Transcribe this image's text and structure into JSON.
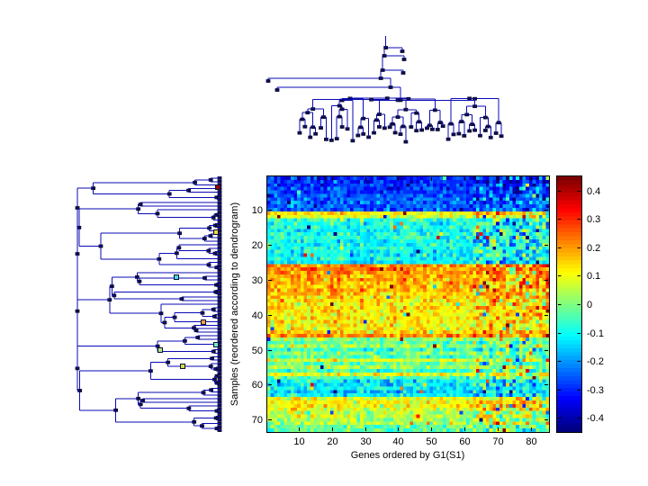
{
  "figure": {
    "background": "#ffffff"
  },
  "heatmap": {
    "x_label": "Genes ordered by G1(S1)",
    "y_label": "Samples (reordered according to dendrogram)",
    "x_ticks": [
      10,
      20,
      30,
      40,
      50,
      60,
      70,
      80
    ],
    "y_ticks": [
      10,
      20,
      30,
      40,
      50,
      60,
      70
    ]
  },
  "colorbar": {
    "tick_labels": [
      "0.4",
      "0.3",
      "0.2",
      "0.1",
      "0",
      "-0.1",
      "-0.2",
      "-0.3",
      "-0.4"
    ],
    "tick_values": [
      0.4,
      0.3,
      0.2,
      0.1,
      0,
      -0.1,
      -0.2,
      -0.3,
      -0.4
    ]
  },
  "chart_data": {
    "type": "heatmap",
    "title": "",
    "xlabel": "Genes ordered by G1(S1)",
    "ylabel": "Samples (reordered according to dendrogram)",
    "n_cols": 85,
    "n_rows": 73,
    "x_tick_values": [
      10,
      20,
      30,
      40,
      50,
      60,
      70,
      80
    ],
    "y_tick_values": [
      10,
      20,
      30,
      40,
      50,
      60,
      70
    ],
    "color_range": [
      -0.45,
      0.45
    ],
    "colormap": "jet",
    "colorbar_tick_values": [
      0.4,
      0.3,
      0.2,
      0.1,
      0,
      -0.1,
      -0.2,
      -0.3,
      -0.4
    ],
    "row_means": [
      -0.32,
      -0.31,
      -0.3,
      -0.29,
      -0.3,
      -0.27,
      -0.26,
      -0.25,
      -0.26,
      -0.27,
      0.13,
      0.08,
      -0.07,
      -0.1,
      -0.08,
      -0.11,
      -0.09,
      -0.07,
      -0.1,
      -0.11,
      -0.08,
      -0.1,
      -0.12,
      -0.1,
      -0.13,
      0.2,
      0.22,
      0.21,
      0.19,
      0.2,
      0.18,
      0.17,
      0.18,
      0.16,
      0.15,
      0.13,
      0.12,
      0.14,
      0.12,
      0.11,
      0.13,
      0.12,
      0.11,
      0.12,
      0.16,
      0.22,
      0.02,
      -0.04,
      0.03,
      -0.06,
      0.0,
      -0.05,
      0.08,
      -0.03,
      0.02,
      -0.06,
      0.09,
      -0.04,
      -0.12,
      -0.13,
      -0.12,
      -0.14,
      -0.12,
      0.1,
      0.12,
      0.11,
      0.09,
      0.04,
      0.05,
      0.03,
      0.04,
      -0.02,
      -0.03
    ],
    "noise_sd": 0.05,
    "dendrograms": {
      "top": {
        "orientation": "top",
        "n_leaves": 44,
        "line_color": "#0a0ab4",
        "node_color": "#0d0d3a"
      },
      "left": {
        "orientation": "left",
        "n_leaves": 73,
        "line_color": "#0a0ab4",
        "node_color": "#0d0d3a",
        "highlight_markers": [
          {
            "x": 242,
            "y": 208,
            "color": "#990000"
          },
          {
            "x": 240,
            "y": 258,
            "color": "#ebd832"
          },
          {
            "x": 196,
            "y": 308,
            "color": "#49d8e0"
          },
          {
            "x": 226,
            "y": 358,
            "color": "#e8a838"
          },
          {
            "x": 240,
            "y": 383,
            "color": "#79e9c6"
          },
          {
            "x": 178,
            "y": 389,
            "color": "#b2e48e"
          },
          {
            "x": 203,
            "y": 407,
            "color": "#cde23a"
          }
        ]
      }
    }
  }
}
